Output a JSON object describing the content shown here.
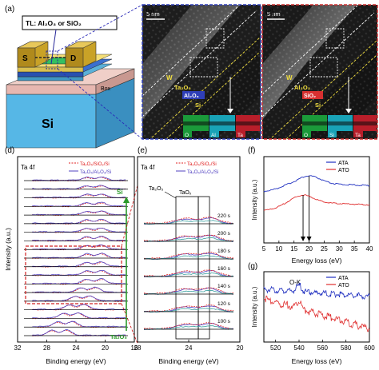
{
  "panels": {
    "a": {
      "letter": "(a)",
      "tl_label": "TL: Al₂O₃ or SiO₂",
      "source": "S",
      "drain": "D",
      "box": "Box",
      "substrate": "Si",
      "colors": {
        "si": "#56b7e6",
        "box": "#e7b7b0",
        "ta2o5": "#f0d060",
        "tl": "#3a6fd0",
        "metal": "#c9a227"
      }
    },
    "b": {
      "letter": "(b)",
      "scale": "5 nm",
      "layers": [
        "W",
        "Ta₂O₅",
        "Al₂O₃",
        "Si"
      ],
      "edx": [
        "O",
        "Al",
        "Ta"
      ],
      "border_color": "#2f3fb8"
    },
    "c": {
      "letter": "(c)",
      "scale": "5 nm",
      "layers": [
        "W",
        "Al₂O₃",
        "SiO₂",
        "Si"
      ],
      "edx": [
        "O",
        "Si",
        "Ta"
      ],
      "border_color": "#d03030"
    },
    "d": {
      "letter": "(d)",
      "corner_label": "Ta 4f",
      "legend": [
        "Ta₂O₅/SiO₂/Si",
        "Ta₂O₅/Al₂O₃/Si"
      ],
      "arrow_top": "Si",
      "arrow_bottom": "Ta₂O₅",
      "xlabel": "Binding energy (eV)",
      "ylabel": "Intensity (a.u.)"
    },
    "e": {
      "letter": "(e)",
      "corner_label": "Ta 4f",
      "legend": [
        "Ta₂O₅/SiO₂/Si",
        "Ta₂O₅/Al₂O₃/Si"
      ],
      "region_labels": [
        "Ta₂O₅",
        "TaOₓ"
      ],
      "xlabel": "Binding energy (eV)"
    },
    "f": {
      "letter": "(f)",
      "legend": [
        "ATA",
        "ATO"
      ],
      "xlabel": "Energy loss (eV)",
      "ylabel": "Intensity (a.u.)"
    },
    "g": {
      "letter": "(g)",
      "legend": [
        "ATA",
        "ATO"
      ],
      "annotation": "O-K",
      "xlabel": "Energy loss (eV)",
      "ylabel": "Intensity (a.u.)"
    }
  },
  "chart_data": [
    {
      "panel": "d",
      "type": "line",
      "xlim": [
        32,
        16
      ],
      "x_ticks": [
        32,
        28,
        24,
        20,
        16
      ],
      "curve_count": 19,
      "series": [
        {
          "name": "Ta₂O₅/SiO₂/Si",
          "color": "#e02020",
          "style": "dashed"
        },
        {
          "name": "Ta₂O₅/Al₂O₃/Si",
          "color": "#5040c0",
          "style": "solid"
        }
      ]
    },
    {
      "panel": "e",
      "type": "line",
      "xlim": [
        28,
        20
      ],
      "x_ticks": [
        28,
        24,
        20
      ],
      "etch_times": [
        "220 s",
        "200 s",
        "180 s",
        "160 s",
        "140 s",
        "120 s",
        "100 s"
      ],
      "series": [
        {
          "name": "Ta₂O₅/SiO₂/Si",
          "color": "#e02020",
          "style": "dashed"
        },
        {
          "name": "Ta₂O₅/Al₂O₃/Si",
          "color": "#5040c0",
          "style": "solid"
        }
      ]
    },
    {
      "panel": "f",
      "type": "line",
      "xlim": [
        5,
        40
      ],
      "x_ticks": [
        5,
        10,
        15,
        20,
        25,
        30,
        35,
        40
      ],
      "series": [
        {
          "name": "ATA",
          "color": "#2030c0",
          "peak_x": 20,
          "offset": 1
        },
        {
          "name": "ATO",
          "color": "#e03030",
          "peak_x": 18,
          "offset": 0
        }
      ]
    },
    {
      "panel": "g",
      "type": "line",
      "xlim": [
        510,
        600
      ],
      "x_ticks": [
        520,
        540,
        560,
        580,
        600
      ],
      "series": [
        {
          "name": "ATA",
          "color": "#2030c0",
          "edge_x": 540
        },
        {
          "name": "ATO",
          "color": "#e03030",
          "edge_x": 540
        }
      ]
    }
  ]
}
